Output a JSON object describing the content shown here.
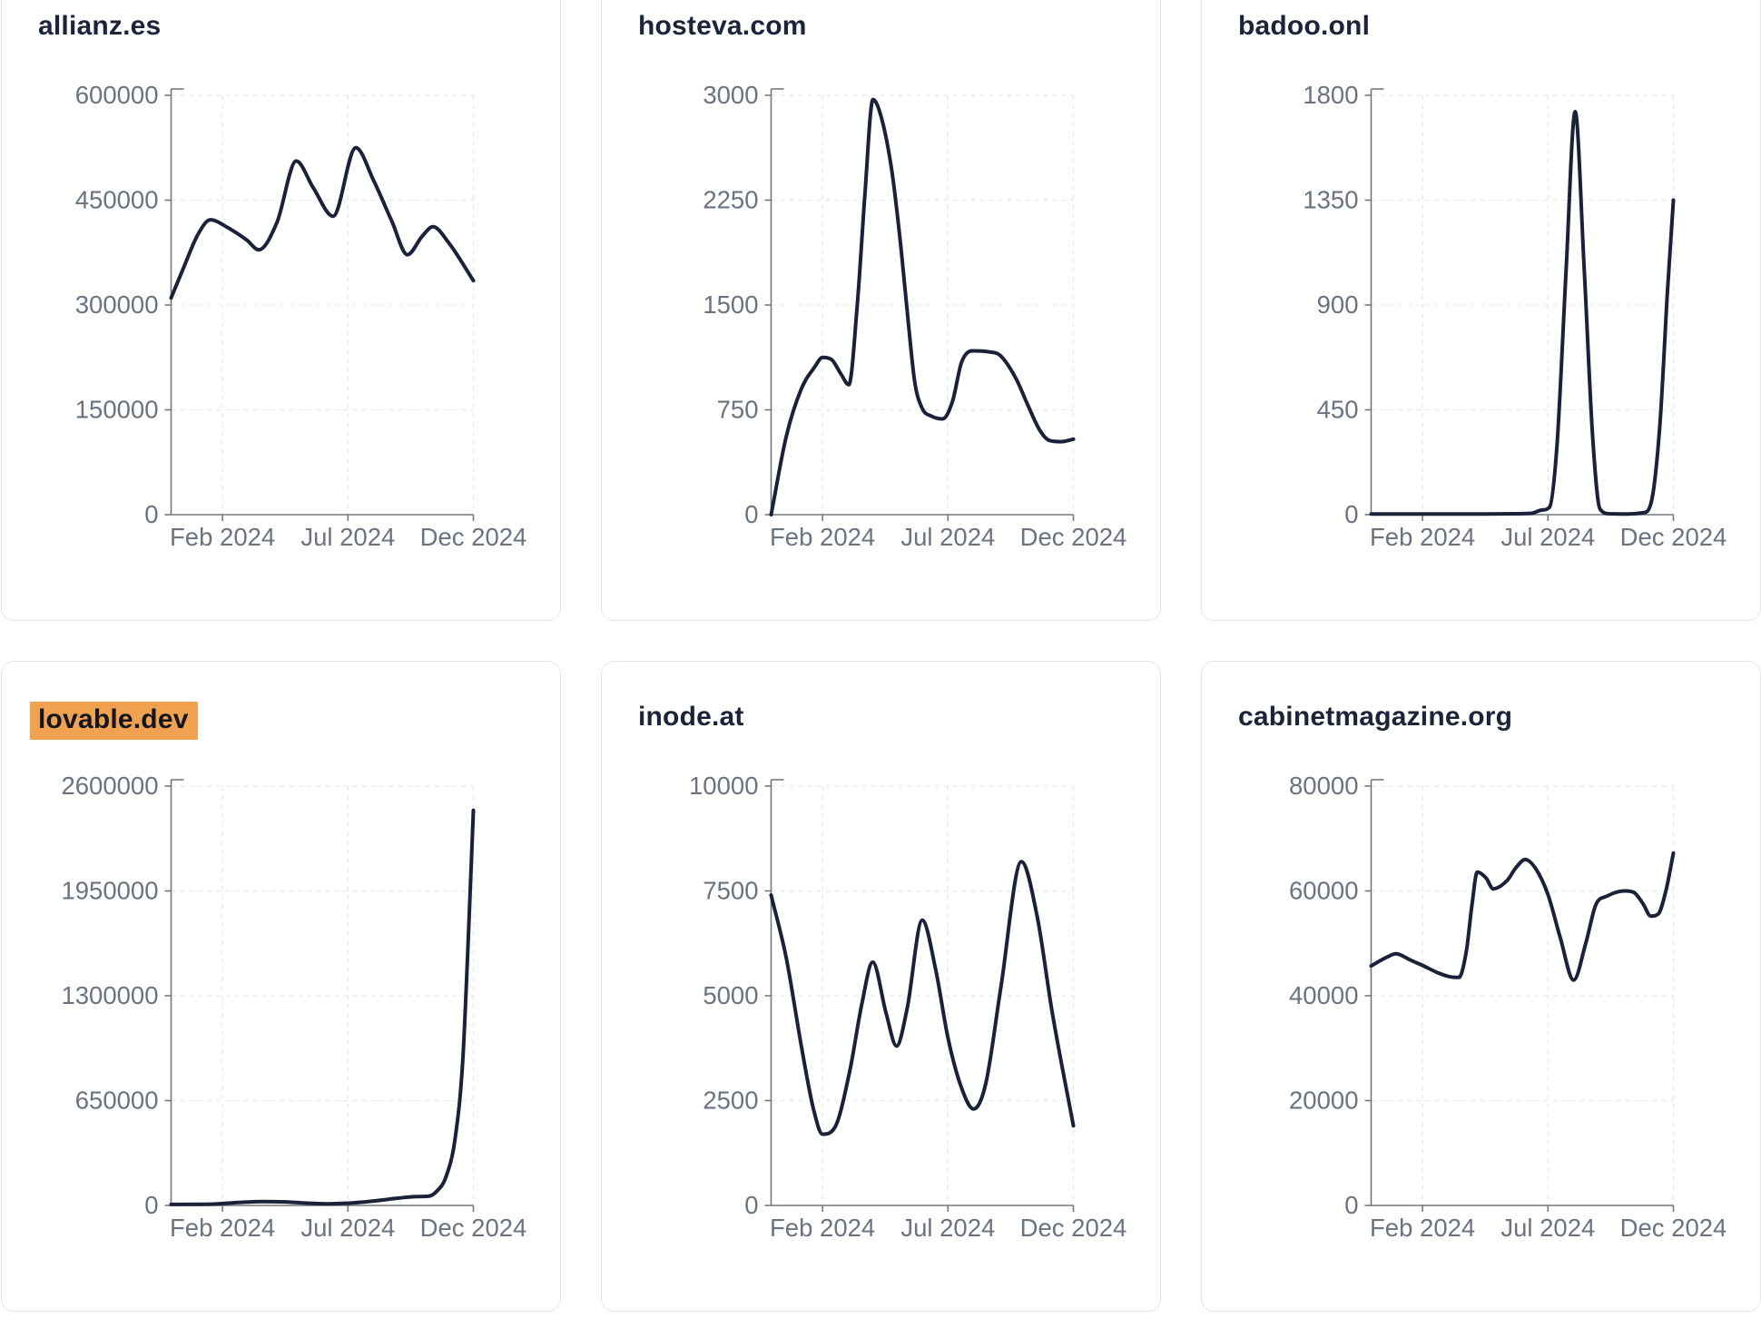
{
  "style": {
    "page_bg": "#ffffff",
    "card_bg": "#ffffff",
    "card_border": "#e5e7eb",
    "title_color": "#1c2439",
    "line_color": "#1b2138",
    "axis_color": "#74787f",
    "tick_label_color": "#6b7280",
    "grid_color": "#e8e9ec",
    "highlight_bg": "#f0a250",
    "highlight_text": "#141722"
  },
  "chart_data": [
    {
      "type": "line",
      "title": "allianz.es",
      "title_highlight": false,
      "x_ticks": [
        {
          "label": "Feb 2024",
          "pos": 0.17
        },
        {
          "label": "Jul 2024",
          "pos": 0.585
        },
        {
          "label": "Dec 2024",
          "pos": 1.0
        }
      ],
      "y_tick_labels": [
        "0",
        "150000",
        "300000",
        "450000",
        "600000"
      ],
      "y_ticks": [
        0,
        150000,
        300000,
        450000,
        600000
      ],
      "ylim": [
        0,
        600000
      ],
      "grid": true,
      "points": [
        [
          0,
          310000
        ],
        [
          0.04,
          352000
        ],
        [
          0.09,
          402000
        ],
        [
          0.13,
          422000
        ],
        [
          0.19,
          410000
        ],
        [
          0.25,
          393000
        ],
        [
          0.29,
          379000
        ],
        [
          0.35,
          418000
        ],
        [
          0.414,
          506000
        ],
        [
          0.47,
          468000
        ],
        [
          0.536,
          427000
        ],
        [
          0.611,
          525000
        ],
        [
          0.67,
          478000
        ],
        [
          0.73,
          420000
        ],
        [
          0.782,
          372000
        ],
        [
          0.83,
          398000
        ],
        [
          0.866,
          412000
        ],
        [
          0.92,
          388000
        ],
        [
          1,
          335000
        ]
      ]
    },
    {
      "type": "line",
      "title": "hosteva.com",
      "title_highlight": false,
      "x_ticks": [
        {
          "label": "Feb 2024",
          "pos": 0.17
        },
        {
          "label": "Jul 2024",
          "pos": 0.585
        },
        {
          "label": "Dec 2024",
          "pos": 1.0
        }
      ],
      "y_tick_labels": [
        "0",
        "750",
        "1500",
        "2250",
        "3000"
      ],
      "y_ticks": [
        0,
        750,
        1500,
        2250,
        3000
      ],
      "ylim": [
        0,
        3000
      ],
      "grid": true,
      "points": [
        [
          0,
          0
        ],
        [
          0.05,
          560
        ],
        [
          0.1,
          900
        ],
        [
          0.145,
          1060
        ],
        [
          0.17,
          1125
        ],
        [
          0.2,
          1110
        ],
        [
          0.23,
          1010
        ],
        [
          0.257,
          930
        ],
        [
          0.285,
          1500
        ],
        [
          0.31,
          2280
        ],
        [
          0.337,
          2970
        ],
        [
          0.365,
          2840
        ],
        [
          0.4,
          2450
        ],
        [
          0.43,
          1900
        ],
        [
          0.455,
          1350
        ],
        [
          0.475,
          950
        ],
        [
          0.5,
          760
        ],
        [
          0.53,
          705
        ],
        [
          0.567,
          685
        ],
        [
          0.6,
          810
        ],
        [
          0.63,
          1090
        ],
        [
          0.667,
          1172
        ],
        [
          0.72,
          1165
        ],
        [
          0.757,
          1140
        ],
        [
          0.81,
          975
        ],
        [
          0.85,
          780
        ],
        [
          0.89,
          600
        ],
        [
          0.92,
          532
        ],
        [
          0.96,
          522
        ],
        [
          1,
          540
        ]
      ]
    },
    {
      "type": "line",
      "title": "badoo.onl",
      "title_highlight": false,
      "x_ticks": [
        {
          "label": "Feb 2024",
          "pos": 0.17
        },
        {
          "label": "Jul 2024",
          "pos": 0.585
        },
        {
          "label": "Dec 2024",
          "pos": 1.0
        }
      ],
      "y_tick_labels": [
        "0",
        "450",
        "900",
        "1350",
        "1800"
      ],
      "y_ticks": [
        0,
        450,
        900,
        1350,
        1800
      ],
      "ylim": [
        0,
        1800
      ],
      "grid": true,
      "points": [
        [
          0,
          3
        ],
        [
          0.12,
          3
        ],
        [
          0.25,
          3
        ],
        [
          0.38,
          3
        ],
        [
          0.47,
          4
        ],
        [
          0.53,
          6
        ],
        [
          0.565,
          20
        ],
        [
          0.59,
          32
        ],
        [
          0.615,
          300
        ],
        [
          0.645,
          1050
        ],
        [
          0.675,
          1730
        ],
        [
          0.705,
          1050
        ],
        [
          0.733,
          330
        ],
        [
          0.757,
          25
        ],
        [
          0.79,
          4
        ],
        [
          0.85,
          3
        ],
        [
          0.9,
          8
        ],
        [
          0.925,
          45
        ],
        [
          0.955,
          380
        ],
        [
          0.98,
          950
        ],
        [
          1,
          1350
        ]
      ]
    },
    {
      "type": "line",
      "title": "lovable.dev",
      "title_highlight": true,
      "x_ticks": [
        {
          "label": "Feb 2024",
          "pos": 0.17
        },
        {
          "label": "Jul 2024",
          "pos": 0.585
        },
        {
          "label": "Dec 2024",
          "pos": 1.0
        }
      ],
      "y_tick_labels": [
        "0",
        "650000",
        "1300000",
        "1950000",
        "2600000"
      ],
      "y_ticks": [
        0,
        650000,
        1300000,
        1950000,
        2600000
      ],
      "ylim": [
        0,
        2600000
      ],
      "grid": true,
      "points": [
        [
          0,
          6000
        ],
        [
          0.08,
          7000
        ],
        [
          0.15,
          9000
        ],
        [
          0.22,
          18000
        ],
        [
          0.3,
          24000
        ],
        [
          0.38,
          22000
        ],
        [
          0.45,
          14000
        ],
        [
          0.52,
          10000
        ],
        [
          0.6,
          16000
        ],
        [
          0.68,
          30000
        ],
        [
          0.75,
          45000
        ],
        [
          0.81,
          55000
        ],
        [
          0.85,
          57000
        ],
        [
          0.88,
          90000
        ],
        [
          0.91,
          180000
        ],
        [
          0.94,
          420000
        ],
        [
          0.965,
          900000
        ],
        [
          0.982,
          1600000
        ],
        [
          1,
          2450000
        ]
      ]
    },
    {
      "type": "line",
      "title": "inode.at",
      "title_highlight": false,
      "x_ticks": [
        {
          "label": "Feb 2024",
          "pos": 0.17
        },
        {
          "label": "Jul 2024",
          "pos": 0.585
        },
        {
          "label": "Dec 2024",
          "pos": 1.0
        }
      ],
      "y_tick_labels": [
        "0",
        "2500",
        "5000",
        "7500",
        "10000"
      ],
      "y_ticks": [
        0,
        2500,
        5000,
        7500,
        10000
      ],
      "ylim": [
        0,
        10000
      ],
      "grid": true,
      "points": [
        [
          0,
          7400
        ],
        [
          0.05,
          5900
        ],
        [
          0.1,
          3800
        ],
        [
          0.14,
          2300
        ],
        [
          0.17,
          1700
        ],
        [
          0.21,
          1850
        ],
        [
          0.26,
          3200
        ],
        [
          0.3,
          4800
        ],
        [
          0.336,
          5800
        ],
        [
          0.38,
          4600
        ],
        [
          0.415,
          3800
        ],
        [
          0.45,
          4700
        ],
        [
          0.5,
          6800
        ],
        [
          0.545,
          5600
        ],
        [
          0.585,
          4000
        ],
        [
          0.63,
          2800
        ],
        [
          0.67,
          2300
        ],
        [
          0.71,
          2900
        ],
        [
          0.76,
          5200
        ],
        [
          0.828,
          8200
        ],
        [
          0.88,
          6900
        ],
        [
          0.93,
          4600
        ],
        [
          1,
          1900
        ]
      ]
    },
    {
      "type": "line",
      "title": "cabinetmagazine.org",
      "title_highlight": false,
      "x_ticks": [
        {
          "label": "Feb 2024",
          "pos": 0.17
        },
        {
          "label": "Jul 2024",
          "pos": 0.585
        },
        {
          "label": "Dec 2024",
          "pos": 1.0
        }
      ],
      "y_tick_labels": [
        "0",
        "20000",
        "40000",
        "60000",
        "80000"
      ],
      "y_ticks": [
        0,
        20000,
        40000,
        60000,
        80000
      ],
      "ylim": [
        0,
        80000
      ],
      "grid": true,
      "points": [
        [
          0,
          45700
        ],
        [
          0.05,
          47300
        ],
        [
          0.082,
          48000
        ],
        [
          0.13,
          46800
        ],
        [
          0.17,
          45800
        ],
        [
          0.22,
          44400
        ],
        [
          0.263,
          43600
        ],
        [
          0.29,
          43500
        ],
        [
          0.315,
          48500
        ],
        [
          0.335,
          58000
        ],
        [
          0.351,
          63600
        ],
        [
          0.38,
          62500
        ],
        [
          0.404,
          60400
        ],
        [
          0.45,
          62000
        ],
        [
          0.48,
          64500
        ],
        [
          0.51,
          66000
        ],
        [
          0.545,
          64200
        ],
        [
          0.585,
          59300
        ],
        [
          0.626,
          51000
        ],
        [
          0.67,
          43000
        ],
        [
          0.71,
          50000
        ],
        [
          0.743,
          57300
        ],
        [
          0.78,
          59000
        ],
        [
          0.84,
          60000
        ],
        [
          0.87,
          59700
        ],
        [
          0.9,
          57500
        ],
        [
          0.925,
          55200
        ],
        [
          0.95,
          55600
        ],
        [
          0.975,
          60000
        ],
        [
          1,
          67200
        ]
      ]
    }
  ]
}
